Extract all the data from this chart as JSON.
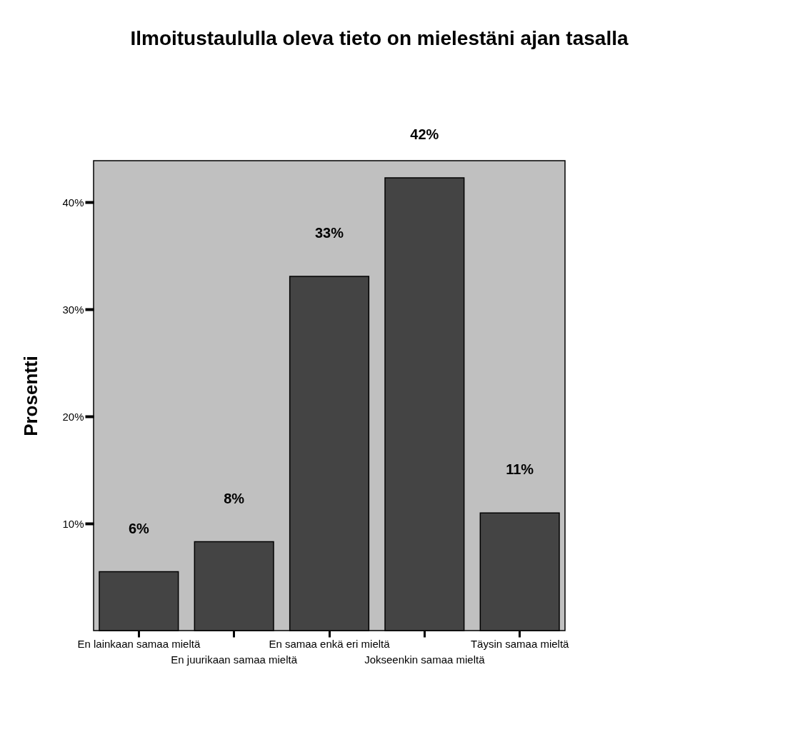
{
  "chart_data": {
    "type": "bar",
    "title": "Ilmoitustaululla oleva tieto on mielestäni ajan tasalla",
    "ylabel": "Prosentti",
    "categories": [
      "En lainkaan samaa mieltä",
      "En juurikaan samaa mieltä",
      "En samaa enkä eri mieltä",
      "Jokseenkin samaa mieltä",
      "Täysin samaa mieltä"
    ],
    "values": [
      5.5,
      8.3,
      33.1,
      42.3,
      11.0
    ],
    "value_labels": [
      "6%",
      "8%",
      "33%",
      "42%",
      "11%"
    ],
    "color": "#444444",
    "ylim": [
      0,
      43.9
    ],
    "yticks": [
      {
        "value": 10,
        "label": "10%"
      },
      {
        "value": 20,
        "label": "20%"
      },
      {
        "value": 30,
        "label": "30%"
      },
      {
        "value": 40,
        "label": "40%"
      }
    ],
    "grid": false
  }
}
